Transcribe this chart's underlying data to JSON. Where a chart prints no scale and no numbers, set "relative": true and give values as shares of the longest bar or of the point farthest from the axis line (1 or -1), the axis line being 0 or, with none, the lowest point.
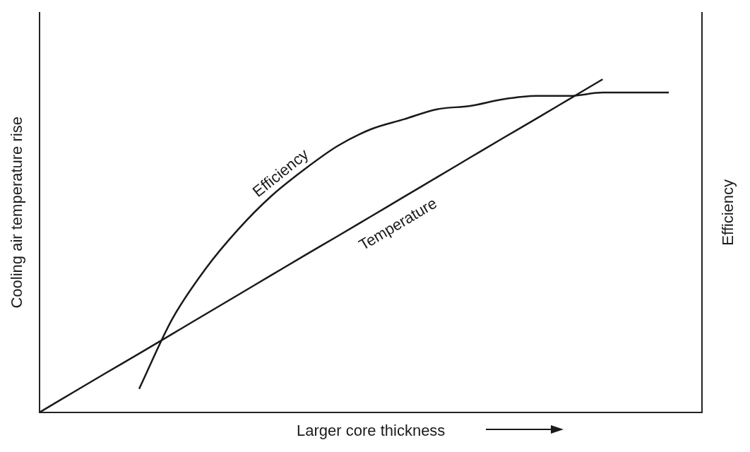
{
  "chart_data": {
    "type": "line",
    "relative": true,
    "xlabel": "Larger core thickness",
    "ylabel": "Cooling air temperature rise",
    "y2label": "Efficiency",
    "legend": false,
    "grid": false,
    "categories": [
      null,
      null,
      null,
      null,
      null,
      null,
      null,
      null,
      null,
      null,
      null,
      null,
      null,
      null,
      null,
      null,
      null,
      null,
      null,
      null,
      null
    ],
    "series": [
      {
        "name": "Efficiency",
        "color": "#1a1a1a",
        "values": [
          null,
          null,
          null,
          0.07,
          0.28,
          0.43,
          0.55,
          0.65,
          0.73,
          0.8,
          0.85,
          0.88,
          0.91,
          0.92,
          0.94,
          0.95,
          0.95,
          0.96,
          0.96,
          0.96,
          null
        ]
      },
      {
        "name": "Temperature",
        "color": "#1a1a1a",
        "values": [
          0,
          0.059,
          0.118,
          0.176,
          0.235,
          0.294,
          0.353,
          0.412,
          0.471,
          0.529,
          0.588,
          0.647,
          0.706,
          0.765,
          0.824,
          0.882,
          0.941,
          1,
          null,
          null,
          null
        ]
      }
    ]
  }
}
